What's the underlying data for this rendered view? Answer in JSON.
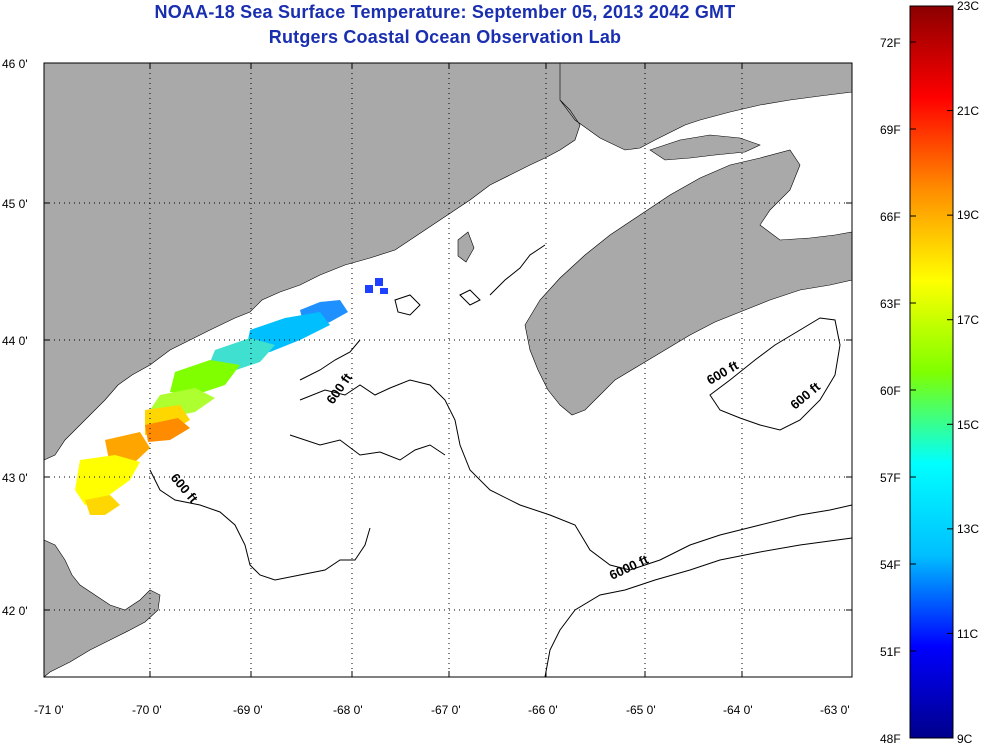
{
  "title": "NOAA-18 Sea Surface Temperature:  September 05, 2013 2042 GMT",
  "subtitle": "Rutgers Coastal Ocean Observation Lab",
  "map": {
    "lon_ticks": [
      "-71 0'",
      "-70 0'",
      "-69 0'",
      "-68 0'",
      "-67 0'",
      "-66 0'",
      "-65 0'",
      "-64 0'",
      "-63 0'"
    ],
    "lat_ticks": [
      "46 0'",
      "45 0'",
      "44 0'",
      "43 0'",
      "42 0'"
    ],
    "contour_labels": [
      "600 ft",
      "600 ft",
      "600 ft",
      "600 ft",
      "6000 ft"
    ],
    "colors": {
      "land": "#a9a9a9",
      "ocean": "#ffffff",
      "grid": "#000000"
    }
  },
  "colorbar": {
    "fahrenheit_labels": [
      "72F",
      "69F",
      "66F",
      "63F",
      "60F",
      "57F",
      "54F",
      "51F",
      "48F"
    ],
    "celsius_labels": [
      "23C",
      "21C",
      "19C",
      "17C",
      "15C",
      "13C",
      "11C",
      "9C"
    ],
    "colors": [
      "#00008b",
      "#0000ff",
      "#00bfff",
      "#00ffff",
      "#7fff00",
      "#ffff00",
      "#ff8c00",
      "#ff0000",
      "#8b0000"
    ]
  }
}
